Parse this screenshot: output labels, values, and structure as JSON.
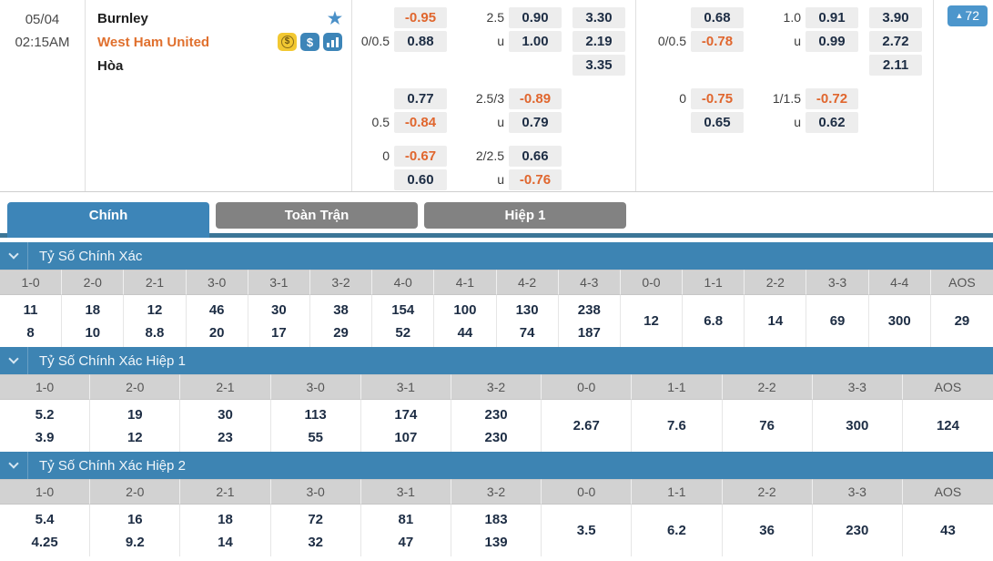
{
  "colors": {
    "accent_blue": "#3d85b8",
    "tab_underline": "#3c7697",
    "badge_blue": "#4c96cc",
    "odds_orange": "#e0662e",
    "odds_navy": "#1d2d44",
    "tab_inactive_gray": "#828282",
    "table_header_gray": "#d2d2d2",
    "cell_gray": "#ededed",
    "away_orange": "#e0702e"
  },
  "icons": [
    "star-icon",
    "coin-icon",
    "dollar-icon",
    "stats-icon",
    "chevron-down-icon",
    "up-arrow-icon"
  ],
  "match": {
    "date": "05/04",
    "time": "02:15AM",
    "home": "Burnley",
    "away": "West Ham United",
    "draw": "Hòa",
    "badge": {
      "arrow": "▲",
      "count": "72"
    }
  },
  "odds_groups": [
    {
      "blocks": [
        {
          "rows": [
            [
              "",
              "-0.95",
              "2.5",
              "0.90",
              "3.30"
            ],
            [
              "0/0.5",
              "0.88",
              "u",
              "1.00",
              "2.19"
            ],
            [
              "",
              "",
              "",
              "",
              "3.35"
            ]
          ]
        },
        {
          "rows": [
            [
              "",
              "0.77",
              "2.5/3",
              "-0.89",
              ""
            ],
            [
              "0.5",
              "-0.84",
              "u",
              "0.79",
              ""
            ]
          ]
        },
        {
          "rows": [
            [
              "0",
              "-0.67",
              "2/2.5",
              "0.66",
              ""
            ],
            [
              "",
              "0.60",
              "u",
              "-0.76",
              ""
            ]
          ]
        }
      ]
    },
    {
      "blocks": [
        {
          "rows": [
            [
              "",
              "0.68",
              "1.0",
              "0.91",
              "3.90"
            ],
            [
              "0/0.5",
              "-0.78",
              "u",
              "0.99",
              "2.72"
            ],
            [
              "",
              "",
              "",
              "",
              "2.11"
            ]
          ]
        },
        {
          "rows": [
            [
              "0",
              "-0.75",
              "1/1.5",
              "-0.72",
              ""
            ],
            [
              "",
              "0.65",
              "u",
              "0.62",
              ""
            ]
          ]
        }
      ]
    }
  ],
  "tabs": [
    {
      "label": "Chính",
      "active": true
    },
    {
      "label": "Toàn Trận",
      "active": false
    },
    {
      "label": "Hiệp 1",
      "active": false
    }
  ],
  "score_tables": [
    {
      "title": "Tỷ Số Chính Xác",
      "columns": [
        {
          "score": "1-0",
          "values": [
            "11",
            "8"
          ]
        },
        {
          "score": "2-0",
          "values": [
            "18",
            "10"
          ]
        },
        {
          "score": "2-1",
          "values": [
            "12",
            "8.8"
          ]
        },
        {
          "score": "3-0",
          "values": [
            "46",
            "20"
          ]
        },
        {
          "score": "3-1",
          "values": [
            "30",
            "17"
          ]
        },
        {
          "score": "3-2",
          "values": [
            "38",
            "29"
          ]
        },
        {
          "score": "4-0",
          "values": [
            "154",
            "52"
          ]
        },
        {
          "score": "4-1",
          "values": [
            "100",
            "44"
          ]
        },
        {
          "score": "4-2",
          "values": [
            "130",
            "74"
          ]
        },
        {
          "score": "4-3",
          "values": [
            "238",
            "187"
          ]
        },
        {
          "score": "0-0",
          "values": [
            "12"
          ]
        },
        {
          "score": "1-1",
          "values": [
            "6.8"
          ]
        },
        {
          "score": "2-2",
          "values": [
            "14"
          ]
        },
        {
          "score": "3-3",
          "values": [
            "69"
          ]
        },
        {
          "score": "4-4",
          "values": [
            "300"
          ]
        },
        {
          "score": "AOS",
          "values": [
            "29"
          ]
        }
      ]
    },
    {
      "title": "Tỷ Số Chính Xác Hiệp 1",
      "columns": [
        {
          "score": "1-0",
          "values": [
            "5.2",
            "3.9"
          ]
        },
        {
          "score": "2-0",
          "values": [
            "19",
            "12"
          ]
        },
        {
          "score": "2-1",
          "values": [
            "30",
            "23"
          ]
        },
        {
          "score": "3-0",
          "values": [
            "113",
            "55"
          ]
        },
        {
          "score": "3-1",
          "values": [
            "174",
            "107"
          ]
        },
        {
          "score": "3-2",
          "values": [
            "230",
            "230"
          ]
        },
        {
          "score": "0-0",
          "values": [
            "2.67"
          ]
        },
        {
          "score": "1-1",
          "values": [
            "7.6"
          ]
        },
        {
          "score": "2-2",
          "values": [
            "76"
          ]
        },
        {
          "score": "3-3",
          "values": [
            "300"
          ]
        },
        {
          "score": "AOS",
          "values": [
            "124"
          ]
        }
      ]
    },
    {
      "title": "Tỷ Số Chính Xác Hiệp 2",
      "columns": [
        {
          "score": "1-0",
          "values": [
            "5.4",
            "4.25"
          ]
        },
        {
          "score": "2-0",
          "values": [
            "16",
            "9.2"
          ]
        },
        {
          "score": "2-1",
          "values": [
            "18",
            "14"
          ]
        },
        {
          "score": "3-0",
          "values": [
            "72",
            "32"
          ]
        },
        {
          "score": "3-1",
          "values": [
            "81",
            "47"
          ]
        },
        {
          "score": "3-2",
          "values": [
            "183",
            "139"
          ]
        },
        {
          "score": "0-0",
          "values": [
            "3.5"
          ]
        },
        {
          "score": "1-1",
          "values": [
            "6.2"
          ]
        },
        {
          "score": "2-2",
          "values": [
            "36"
          ]
        },
        {
          "score": "3-3",
          "values": [
            "230"
          ]
        },
        {
          "score": "AOS",
          "values": [
            "43"
          ]
        }
      ]
    }
  ]
}
